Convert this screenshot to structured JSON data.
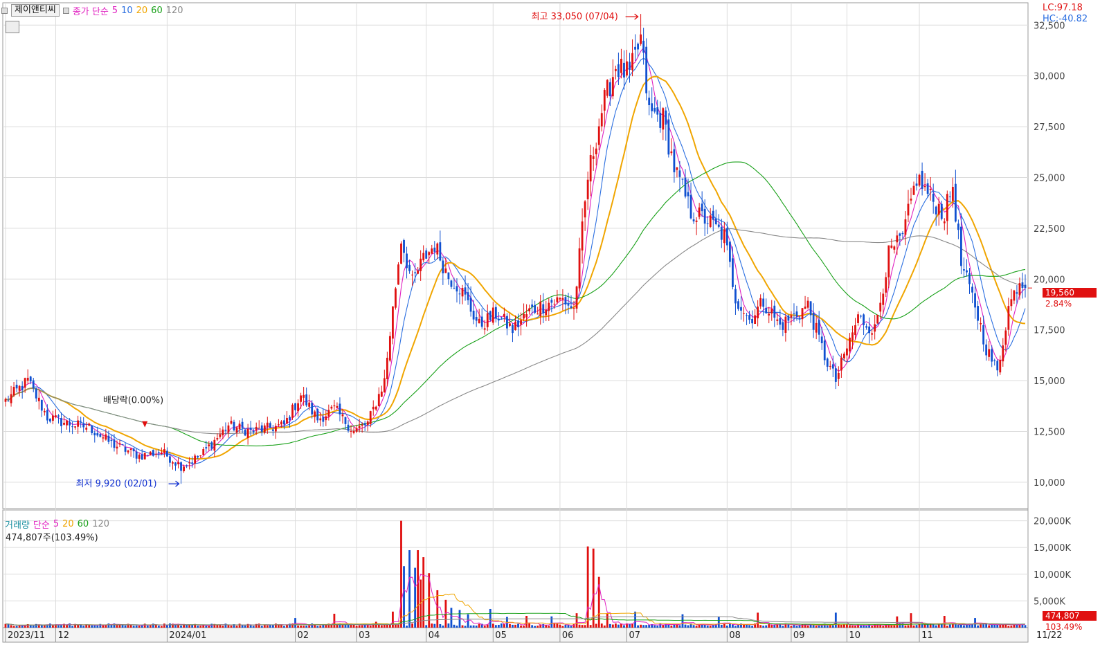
{
  "header": {
    "ticker": "제이앤티씨",
    "ma_label": "종가 단순",
    "ma_periods": [
      "5",
      "10",
      "20",
      "60",
      "120"
    ],
    "ma_colors": [
      "#e020c0",
      "#2a6ee0",
      "#f0a500",
      "#18a018",
      "#888888"
    ]
  },
  "indicators": {
    "lc": "LC:97.18",
    "hc": "HC:-40.82"
  },
  "price_panel": {
    "high_label": "최고 33,050 (07/04)",
    "low_label": "최저 9,920 (02/01)",
    "dividend_label": "배당락(0.00%)",
    "current_price": "19,560",
    "change_pct": "2.84%",
    "y_ticks": [
      "32,500",
      "30,000",
      "27,500",
      "25,000",
      "22,500",
      "20,000",
      "17,500",
      "15,000",
      "12,500",
      "10,000"
    ]
  },
  "volume_panel": {
    "title": "거래량",
    "ma_label": "단순",
    "ma_periods": [
      "5",
      "20",
      "60",
      "120"
    ],
    "summary": "474,807주(103.49%)",
    "current_volume": "474,807",
    "current_pct": "103.49%",
    "y_ticks": [
      "20,000K",
      "15,000K",
      "10,000K",
      "5,000K"
    ]
  },
  "x_axis": {
    "labels": [
      "2023/11",
      "12",
      "2024/01",
      "02",
      "03",
      "04",
      "05",
      "06",
      "07",
      "08",
      "09",
      "10",
      "11"
    ],
    "end_label": "11/22"
  },
  "chart_data": {
    "type": "candlestick",
    "title": "제이앤티씨",
    "period": "2023/11 - 11/22",
    "ylim": [
      8700,
      33600
    ],
    "volume_ylim": [
      0,
      21500
    ],
    "up_color": "#e01010",
    "down_color": "#1050d0",
    "high": {
      "value": 33050,
      "date": "07/04"
    },
    "low": {
      "value": 9920,
      "date": "02/01"
    },
    "last_close": 19560,
    "last_change_pct": 2.84,
    "last_volume": 474807,
    "price_anchors": [
      [
        0,
        14000
      ],
      [
        8,
        15000
      ],
      [
        15,
        13200
      ],
      [
        22,
        12900
      ],
      [
        30,
        12700
      ],
      [
        38,
        11900
      ],
      [
        48,
        11300
      ],
      [
        56,
        11500
      ],
      [
        63,
        10800
      ],
      [
        70,
        11300
      ],
      [
        80,
        12800
      ],
      [
        88,
        12500
      ],
      [
        100,
        12800
      ],
      [
        106,
        14300
      ],
      [
        112,
        13100
      ],
      [
        118,
        13600
      ],
      [
        125,
        12500
      ],
      [
        130,
        12900
      ],
      [
        136,
        15000
      ],
      [
        142,
        22000
      ],
      [
        146,
        19800
      ],
      [
        150,
        21000
      ],
      [
        154,
        21700
      ],
      [
        159,
        20100
      ],
      [
        163,
        19600
      ],
      [
        170,
        17700
      ],
      [
        176,
        18300
      ],
      [
        182,
        17500
      ],
      [
        188,
        18400
      ],
      [
        194,
        18800
      ],
      [
        200,
        19000
      ],
      [
        204,
        18500
      ],
      [
        209,
        25000
      ],
      [
        214,
        28300
      ],
      [
        219,
        30500
      ],
      [
        224,
        30000
      ],
      [
        228,
        31800
      ],
      [
        231,
        28200
      ],
      [
        236,
        27900
      ],
      [
        240,
        25500
      ],
      [
        246,
        23300
      ],
      [
        252,
        22900
      ],
      [
        258,
        22100
      ],
      [
        262,
        19100
      ],
      [
        267,
        18000
      ],
      [
        272,
        18900
      ],
      [
        278,
        17700
      ],
      [
        283,
        18200
      ],
      [
        288,
        18700
      ],
      [
        294,
        16200
      ],
      [
        298,
        15000
      ],
      [
        302,
        16600
      ],
      [
        306,
        18100
      ],
      [
        312,
        17500
      ],
      [
        317,
        21200
      ],
      [
        322,
        22000
      ],
      [
        327,
        25000
      ],
      [
        332,
        24000
      ],
      [
        337,
        23200
      ],
      [
        340,
        24600
      ],
      [
        343,
        20700
      ],
      [
        348,
        18700
      ],
      [
        352,
        16600
      ],
      [
        356,
        15400
      ],
      [
        360,
        18600
      ],
      [
        364,
        20000
      ],
      [
        366,
        19560
      ]
    ],
    "volume_spikes": [
      [
        104,
        1800
      ],
      [
        118,
        2600
      ],
      [
        133,
        1100
      ],
      [
        139,
        3000
      ],
      [
        142,
        20000
      ],
      [
        143,
        11500
      ],
      [
        145,
        14500
      ],
      [
        147,
        11200
      ],
      [
        148,
        14500
      ],
      [
        149,
        9000
      ],
      [
        150,
        13200
      ],
      [
        152,
        10200
      ],
      [
        155,
        7000
      ],
      [
        158,
        5200
      ],
      [
        160,
        3700
      ],
      [
        163,
        3300
      ],
      [
        166,
        2500
      ],
      [
        174,
        3500
      ],
      [
        180,
        2000
      ],
      [
        187,
        2200
      ],
      [
        196,
        2100
      ],
      [
        205,
        2700
      ],
      [
        209,
        15200
      ],
      [
        211,
        14800
      ],
      [
        213,
        9500
      ],
      [
        216,
        2700
      ],
      [
        226,
        3000
      ],
      [
        243,
        2500
      ],
      [
        256,
        2000
      ],
      [
        270,
        2800
      ],
      [
        298,
        2800
      ],
      [
        320,
        2100
      ],
      [
        325,
        2700
      ],
      [
        337,
        2200
      ],
      [
        348,
        1800
      ]
    ],
    "moving_averages": [
      {
        "name": "5",
        "color": "#e020c0"
      },
      {
        "name": "10",
        "color": "#2a6ee0"
      },
      {
        "name": "20",
        "color": "#f0a500"
      },
      {
        "name": "60",
        "color": "#18a018"
      },
      {
        "name": "120",
        "color": "#888888"
      }
    ]
  }
}
